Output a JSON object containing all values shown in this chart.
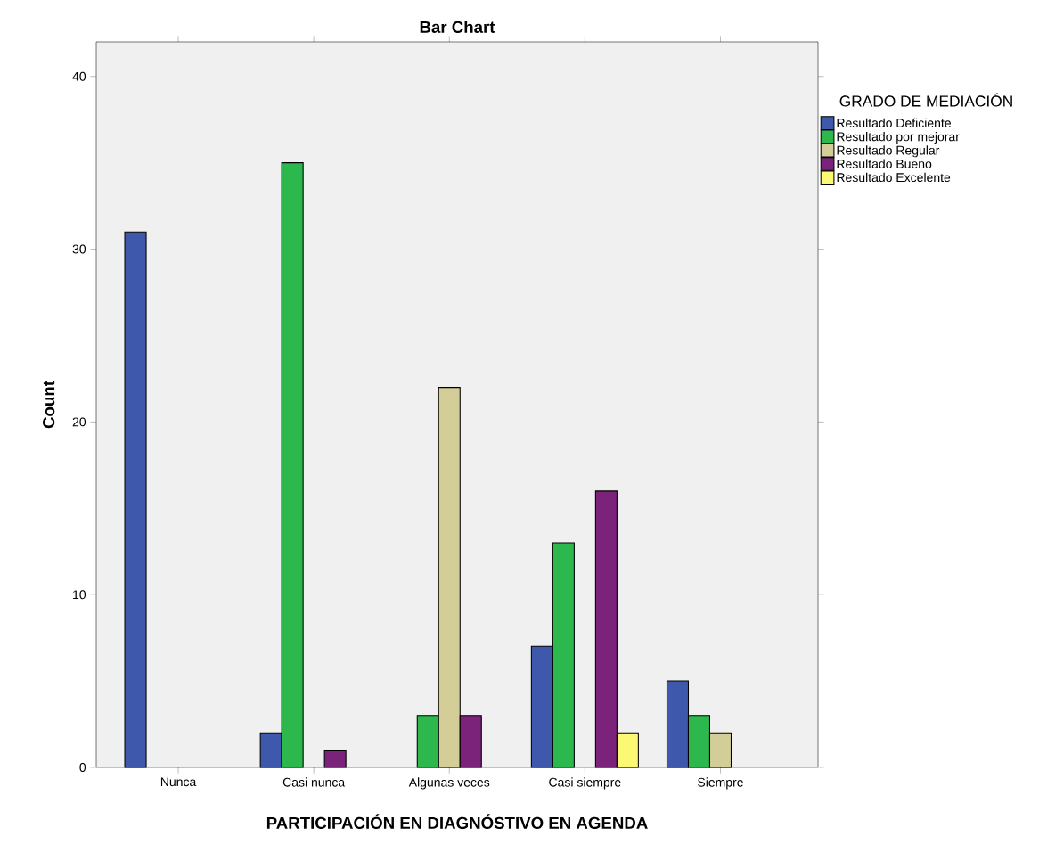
{
  "chart_data": {
    "type": "bar",
    "title": "Bar Chart",
    "xlabel": "PARTICIPACIÓN EN DIAGNÓSTIVO EN AGENDA",
    "ylabel": "Count",
    "legend_title": "GRADO DE MEDIACIÓN",
    "categories": [
      "Nunca",
      "Casi nunca",
      "Algunas veces",
      "Casi siempre",
      "Siempre"
    ],
    "series": [
      {
        "name": "Resultado Deficiente",
        "color": "#3e58ac",
        "values": [
          31,
          2,
          null,
          7,
          5
        ]
      },
      {
        "name": "Resultado por mejorar",
        "color": "#2db84d",
        "values": [
          null,
          35,
          3,
          13,
          3
        ]
      },
      {
        "name": "Resultado Regular",
        "color": "#d3ce97",
        "values": [
          null,
          null,
          22,
          null,
          2
        ]
      },
      {
        "name": "Resultado Bueno",
        "color": "#7b237a",
        "values": [
          null,
          1,
          3,
          16,
          null
        ]
      },
      {
        "name": "Resultado Excelente",
        "color": "#fbf873",
        "values": [
          null,
          null,
          null,
          2,
          null
        ]
      }
    ],
    "ylim": [
      0,
      42
    ],
    "yticks": [
      0,
      10,
      20,
      30,
      40
    ],
    "grid": false,
    "legend": "top right"
  }
}
